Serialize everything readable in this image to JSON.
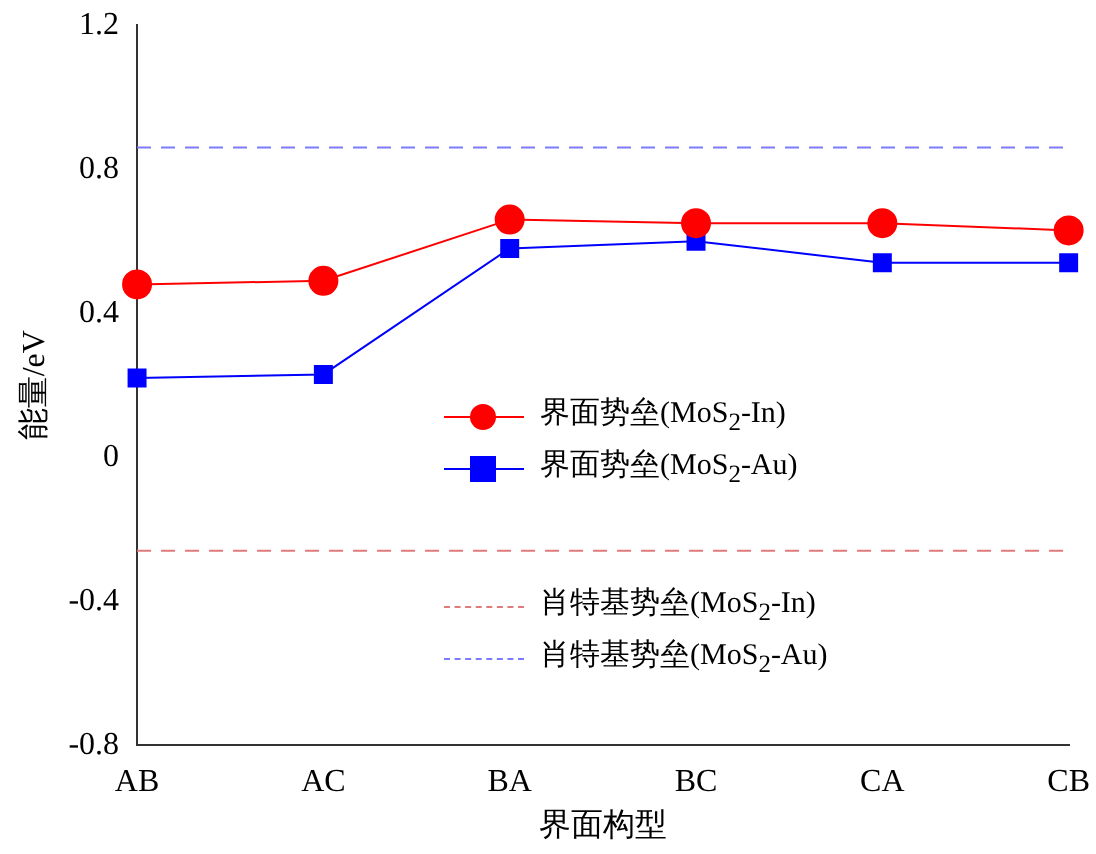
{
  "chart_data": {
    "type": "line",
    "xlabel": "界面构型",
    "ylabel": "能量/eV",
    "categories": [
      "AB",
      "AC",
      "BA",
      "BC",
      "CA",
      "CB"
    ],
    "series": [
      {
        "name": "界面势垒(MoS$_{2}$-In)",
        "color": "#ff0000",
        "marker": "circle",
        "values": [
          0.48,
          0.49,
          0.66,
          0.65,
          0.65,
          0.63
        ]
      },
      {
        "name": "界面势垒(MoS$_{2}$-Au)",
        "color": "#0000ff",
        "marker": "square",
        "values": [
          0.22,
          0.23,
          0.58,
          0.6,
          0.54,
          0.54
        ]
      }
    ],
    "ref_lines": [
      {
        "axis": "y",
        "value": -0.26,
        "label": "肖特基势垒(MoS$_{2}$-In)",
        "color": "#e07b7b",
        "line_style": "dashed"
      },
      {
        "axis": "y",
        "value": 0.86,
        "label": "肖特基势垒(MoS$_{2}$-Au)",
        "color": "#7b7bff",
        "line_style": "dashed"
      }
    ],
    "ylim": [
      -0.8,
      1.2
    ],
    "yticks": [
      -0.8,
      -0.4,
      0,
      0.4,
      0.8,
      1.2
    ],
    "grid": false,
    "legend": "center",
    "line_style": "solid"
  }
}
